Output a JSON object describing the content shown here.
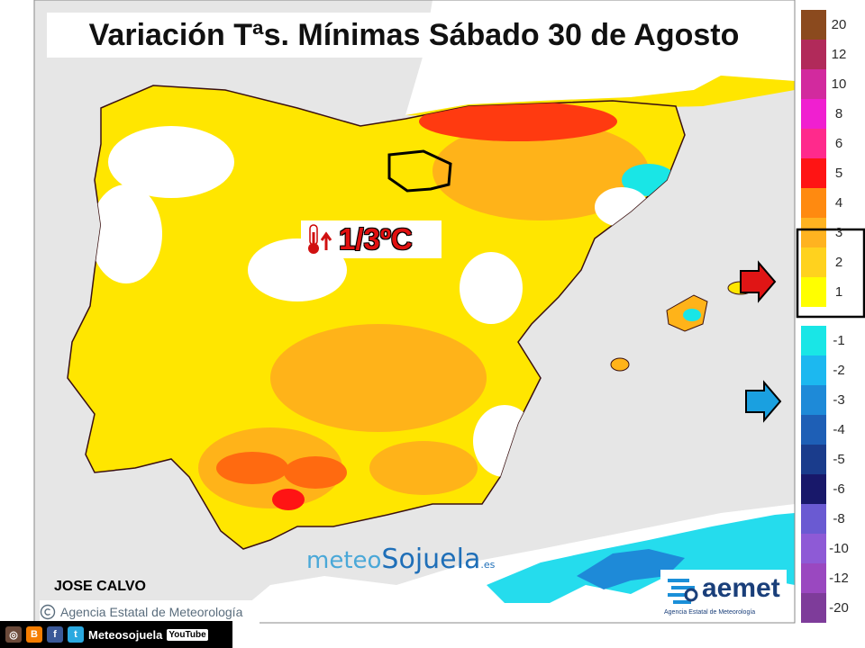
{
  "map": {
    "title": "Variación Tªs. Mínimas Sábado 30 de Agosto",
    "headline_value": "1/3ºC",
    "author": "JOSE CALVO",
    "credit": "Agencia Estatal de Meteorología",
    "watermark": {
      "part1": "meteo",
      "part2": "Sojuela",
      "part3": ".es"
    },
    "logo": {
      "word": "aemet",
      "subtitle": "Agencia Estatal de Meteorología"
    },
    "social": {
      "handle": "Meteosojuela",
      "youtube": "YouTube"
    }
  },
  "legend": {
    "positive": [
      {
        "label": "20",
        "color": "#8b4a1e"
      },
      {
        "label": "12",
        "color": "#b12a5a"
      },
      {
        "label": "10",
        "color": "#d22a9e"
      },
      {
        "label": "8",
        "color": "#f01fd0"
      },
      {
        "label": "6",
        "color": "#ff2a8c"
      },
      {
        "label": "5",
        "color": "#ff1414"
      },
      {
        "label": "4",
        "color": "#ff8a10"
      },
      {
        "label": "3",
        "color": "#ffb320"
      },
      {
        "label": "2",
        "color": "#ffd21e"
      },
      {
        "label": "1",
        "color": "#ffff00"
      }
    ],
    "negative": [
      {
        "label": "-1",
        "color": "#19e6e6"
      },
      {
        "label": "-2",
        "color": "#1cb8f0"
      },
      {
        "label": "-3",
        "color": "#1e8ad8"
      },
      {
        "label": "-4",
        "color": "#1e5fb6"
      },
      {
        "label": "-5",
        "color": "#1a3c8c"
      },
      {
        "label": "-6",
        "color": "#18186a"
      },
      {
        "label": "-8",
        "color": "#6a5ad2"
      },
      {
        "label": "-10",
        "color": "#8e5ad6"
      },
      {
        "label": "-12",
        "color": "#9a48c0"
      },
      {
        "label": "-20",
        "color": "#7e3c9a"
      }
    ],
    "highlight_range": "1 – 3",
    "arrow_warm_color": "#e01515",
    "arrow_cold_color": "#1aa0e0"
  },
  "colors": {
    "sea": "#e6e6e6",
    "land_base": "#ffe600",
    "land_warm": "#ffb319",
    "land_hot": "#ff3a10",
    "outside_land": "#ffffff",
    "cold": "#25dced"
  }
}
